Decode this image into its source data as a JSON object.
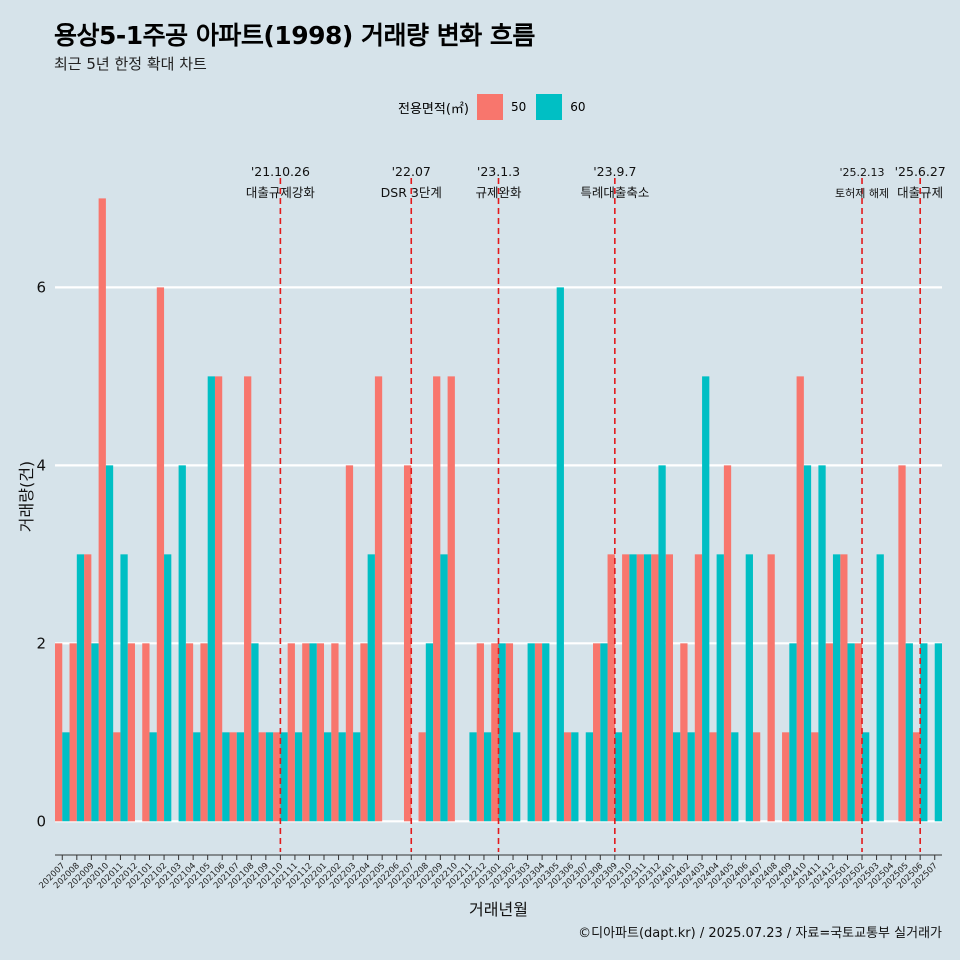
{
  "header": {
    "title": "용상5-1주공 아파트(1998) 거래량 변화 흐름",
    "subtitle": "최근 5년 한정 확대 차트"
  },
  "legend": {
    "title": "전용면적(㎡)",
    "items": [
      {
        "label": "50",
        "color": "#F8766D"
      },
      {
        "label": "60",
        "color": "#00BFC4"
      }
    ]
  },
  "caption": "©디아파트(dapt.kr) / 2025.07.23 / 자료=국토교통부 실거래가",
  "colors": {
    "background": "#d6e3ea",
    "gridline": "#ffffff",
    "event_line": "#e31a1c"
  },
  "chart_data": {
    "type": "bar",
    "xlabel": "거래년월",
    "ylabel": "거래량(건)",
    "ylim": [
      -0.3,
      7.6
    ],
    "yticks": [
      0,
      2,
      4,
      6
    ],
    "categories": [
      "202007",
      "202008",
      "202009",
      "202010",
      "202011",
      "202012",
      "202101",
      "202102",
      "202103",
      "202104",
      "202105",
      "202106",
      "202107",
      "202108",
      "202109",
      "202110",
      "202111",
      "202112",
      "202201",
      "202202",
      "202203",
      "202204",
      "202205",
      "202206",
      "202207",
      "202208",
      "202209",
      "202210",
      "202211",
      "202212",
      "202301",
      "202302",
      "202303",
      "202304",
      "202305",
      "202306",
      "202307",
      "202308",
      "202309",
      "202310",
      "202311",
      "202312",
      "202401",
      "202402",
      "202403",
      "202404",
      "202405",
      "202406",
      "202407",
      "202408",
      "202409",
      "202410",
      "202411",
      "202412",
      "202501",
      "202502",
      "202503",
      "202504",
      "202505",
      "202506",
      "202507"
    ],
    "series": [
      {
        "name": "50",
        "color": "#F8766D",
        "values": [
          2,
          2,
          3,
          7,
          1,
          2,
          2,
          6,
          0,
          2,
          2,
          5,
          1,
          5,
          1,
          1,
          2,
          2,
          2,
          2,
          4,
          2,
          5,
          0,
          4,
          1,
          5,
          5,
          0,
          2,
          2,
          2,
          0,
          2,
          0,
          1,
          0,
          2,
          3,
          3,
          3,
          3,
          3,
          2,
          3,
          1,
          4,
          0,
          1,
          3,
          1,
          5,
          1,
          2,
          3,
          2,
          0,
          0,
          4,
          1,
          0
        ]
      },
      {
        "name": "60",
        "color": "#00BFC4",
        "values": [
          1,
          3,
          2,
          4,
          3,
          0,
          1,
          3,
          4,
          1,
          5,
          1,
          1,
          2,
          1,
          1,
          1,
          2,
          1,
          1,
          1,
          3,
          0,
          0,
          0,
          2,
          3,
          0,
          1,
          1,
          2,
          1,
          2,
          2,
          6,
          1,
          1,
          2,
          1,
          3,
          3,
          4,
          1,
          1,
          5,
          3,
          1,
          3,
          0,
          0,
          2,
          4,
          4,
          3,
          2,
          1,
          3,
          0,
          2,
          2,
          2
        ]
      }
    ],
    "events": [
      {
        "month": "202110",
        "date": "'21.10.26",
        "label": "대출규제강화"
      },
      {
        "month": "202207",
        "date": "'22.07",
        "label": "DSR 3단계"
      },
      {
        "month": "202301",
        "date": "'23.1.3",
        "label": "규제완화"
      },
      {
        "month": "202309",
        "date": "'23.9.7",
        "label": "특례대출축소"
      },
      {
        "month": "202502",
        "date": "'25.2.13",
        "label": "토허제 해제"
      },
      {
        "month": "202506",
        "date": "'25.6.27",
        "label": "대출규제"
      }
    ],
    "grid": true,
    "legend_position": "top"
  }
}
